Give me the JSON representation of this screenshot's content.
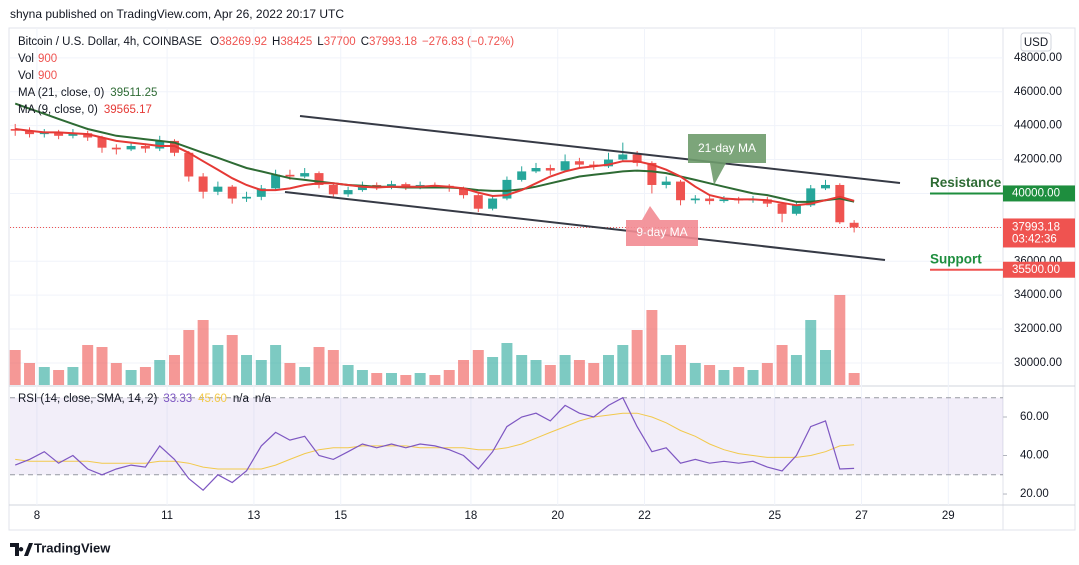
{
  "header": "shyna published on TradingView.com, Apr 26, 2022 20:17 UTC",
  "footer": "TradingView",
  "currency": "USD",
  "chart_data": {
    "type": "candlestick",
    "title": "Bitcoin / U.S. Dollar, 4h, COINBASE",
    "ohlc_letters": [
      "O",
      "H",
      "L",
      "C"
    ],
    "change_label": "−276.83 (−0.72%)",
    "volume_legend": [
      "Vol",
      "900",
      "Vol",
      "900"
    ],
    "ma21_name": "MA (21, close, 0)",
    "ma9_name": "MA (9, close, 0)",
    "rsi_name": "RSI (14, close, SMA, 14, 2)",
    "rsi_sma_label": "45.60",
    "rsi_na": [
      "n/a",
      "n/a"
    ],
    "countdown": "03:42:36",
    "annotations": {
      "ma21": "21-day MA",
      "ma9": "9-day MA",
      "resistance": {
        "label": "Resistance",
        "value": 40000,
        "value_label": "40000.00"
      },
      "support": {
        "label": "Support",
        "value": 35500,
        "value_label": "35500.00"
      }
    },
    "x": [
      7.5,
      7.83,
      8.17,
      8.5,
      8.83,
      9.17,
      9.5,
      9.83,
      10.17,
      10.5,
      10.83,
      11.17,
      11.5,
      11.83,
      12.17,
      12.5,
      12.83,
      13.17,
      13.5,
      13.83,
      14.17,
      14.5,
      14.83,
      15.17,
      15.5,
      15.83,
      16.17,
      16.5,
      16.83,
      17.17,
      17.5,
      17.83,
      18.17,
      18.5,
      18.83,
      19.17,
      19.5,
      19.83,
      20.17,
      20.5,
      20.83,
      21.17,
      21.5,
      21.83,
      22.17,
      22.5,
      22.83,
      23.17,
      23.5,
      23.83,
      24.17,
      24.5,
      24.83,
      25.17,
      25.5,
      25.83,
      26.17,
      26.5,
      26.83
    ],
    "open": [
      43800,
      43700,
      43500,
      43600,
      43400,
      43550,
      43300,
      42700,
      42600,
      42800,
      42650,
      43100,
      42400,
      41000,
      40100,
      40400,
      39700,
      39800,
      40300,
      41100,
      41000,
      41200,
      40500,
      39950,
      40200,
      40500,
      40400,
      40550,
      40350,
      40500,
      40450,
      40300,
      39900,
      39100,
      39700,
      40800,
      41300,
      41500,
      41350,
      41900,
      41700,
      41600,
      42000,
      42300,
      41800,
      40500,
      40700,
      39600,
      39700,
      39550,
      39650,
      39600,
      39650,
      39400,
      38800,
      39300,
      40300,
      40500,
      38269.92
    ],
    "high": [
      44100,
      43900,
      43800,
      43750,
      43800,
      43700,
      43400,
      42900,
      43000,
      42950,
      43400,
      43200,
      42500,
      41200,
      40700,
      40500,
      40100,
      40500,
      41400,
      41400,
      41500,
      41300,
      40600,
      40400,
      40700,
      40650,
      40750,
      40650,
      40700,
      40650,
      40550,
      40400,
      40000,
      39900,
      41000,
      41600,
      41800,
      41700,
      42300,
      42100,
      41900,
      42400,
      43000,
      42500,
      41900,
      41000,
      40800,
      39900,
      39850,
      39850,
      39800,
      39850,
      39800,
      39500,
      39500,
      40500,
      40800,
      40600,
      38425
    ],
    "low": [
      43400,
      43300,
      43300,
      43200,
      43250,
      43100,
      42400,
      42300,
      42500,
      42400,
      42500,
      42200,
      40700,
      39700,
      39900,
      39400,
      39500,
      39600,
      40200,
      40800,
      40900,
      40300,
      39700,
      39800,
      40100,
      40200,
      40250,
      40200,
      40250,
      40300,
      40100,
      39700,
      38900,
      39000,
      39600,
      40700,
      41200,
      41100,
      41300,
      41500,
      41400,
      41500,
      41900,
      41600,
      40000,
      40300,
      39300,
      39400,
      39350,
      39450,
      39400,
      39450,
      39200,
      38300,
      38700,
      39200,
      40200,
      38200,
      37700
    ],
    "close": [
      43700,
      43500,
      43600,
      43400,
      43550,
      43300,
      42700,
      42600,
      42800,
      42650,
      43100,
      42400,
      41000,
      40100,
      40400,
      39700,
      39800,
      40300,
      41100,
      41000,
      41200,
      40500,
      39950,
      40200,
      40500,
      40400,
      40550,
      40350,
      40500,
      40450,
      40300,
      39900,
      39100,
      39700,
      40800,
      41300,
      41500,
      41350,
      41900,
      41700,
      41600,
      42000,
      42300,
      41800,
      40500,
      40700,
      39600,
      39700,
      39550,
      39650,
      39600,
      39650,
      39400,
      38800,
      39300,
      40300,
      40500,
      38300,
      37993.18
    ],
    "volume": [
      35,
      22,
      18,
      15,
      18,
      40,
      38,
      22,
      15,
      18,
      25,
      30,
      55,
      65,
      40,
      50,
      30,
      25,
      40,
      22,
      18,
      38,
      35,
      20,
      15,
      12,
      12,
      10,
      12,
      10,
      15,
      25,
      35,
      28,
      42,
      30,
      25,
      20,
      30,
      25,
      22,
      30,
      40,
      55,
      75,
      30,
      40,
      22,
      20,
      15,
      18,
      15,
      22,
      40,
      30,
      65,
      35,
      90,
      12
    ],
    "vlim": [
      0,
      100
    ],
    "ma21": [
      45300,
      45000,
      44700,
      44400,
      44100,
      43800,
      43600,
      43400,
      43300,
      43200,
      43100,
      43000,
      42700,
      42400,
      42100,
      41800,
      41500,
      41300,
      41100,
      40900,
      40800,
      40700,
      40600,
      40500,
      40450,
      40400,
      40400,
      40350,
      40350,
      40350,
      40350,
      40300,
      40200,
      40150,
      40150,
      40250,
      40400,
      40600,
      40800,
      41000,
      41100,
      41200,
      41300,
      41350,
      41300,
      41200,
      41000,
      40800,
      40600,
      40400,
      40200,
      40000,
      39900,
      39700,
      39500,
      39500,
      39600,
      39700,
      39511.25
    ],
    "ma9": [
      43800,
      43700,
      43600,
      43600,
      43550,
      43500,
      43300,
      43100,
      43000,
      42900,
      42800,
      42800,
      42400,
      41900,
      41400,
      40900,
      40500,
      40200,
      40200,
      40300,
      40500,
      40600,
      40600,
      40500,
      40400,
      40350,
      40400,
      40400,
      40400,
      40450,
      40400,
      40300,
      40050,
      39850,
      39900,
      40200,
      40600,
      41000,
      41300,
      41500,
      41600,
      41700,
      41900,
      41900,
      41700,
      41400,
      41000,
      40400,
      39900,
      39700,
      39650,
      39650,
      39600,
      39450,
      39300,
      39400,
      39600,
      39800,
      39565.17
    ],
    "rsi": [
      35,
      38,
      42,
      36,
      40,
      33,
      30,
      33,
      35,
      34,
      45,
      38,
      28,
      22,
      30,
      26,
      32,
      45,
      52,
      48,
      50,
      40,
      38,
      42,
      46,
      44,
      46,
      44,
      46,
      45,
      43,
      40,
      33,
      42,
      55,
      60,
      62,
      58,
      66,
      62,
      60,
      66,
      70,
      55,
      42,
      44,
      36,
      38,
      36,
      37,
      36,
      37,
      34,
      32,
      40,
      55,
      58,
      33,
      33.33
    ],
    "rsi_sma": [
      38,
      37,
      37,
      37,
      37,
      37,
      36,
      36,
      36,
      36,
      37,
      37,
      36,
      34,
      33,
      33,
      33,
      33,
      35,
      38,
      41,
      43,
      44,
      44,
      45,
      45,
      45,
      45,
      44,
      44,
      44,
      44,
      43,
      43,
      44,
      46,
      49,
      52,
      55,
      58,
      60,
      61,
      62,
      62,
      60,
      57,
      53,
      50,
      46,
      43,
      41,
      40,
      39,
      39,
      39,
      40,
      42,
      45,
      45.6
    ],
    "xlim": [
      7.38,
      30.26
    ],
    "xticks": [
      8,
      11,
      13,
      15,
      18,
      20,
      22,
      25,
      27,
      29
    ],
    "ylim": [
      28700,
      49760
    ],
    "yticks": [
      {
        "value": 30000,
        "label": "30000.00"
      },
      {
        "value": 32000,
        "label": "32000.00"
      },
      {
        "value": 34000,
        "label": "34000.00"
      },
      {
        "value": 36000,
        "label": "36000.00"
      },
      {
        "value": 38000,
        "label": "38000.00"
      },
      {
        "value": 40000,
        "label": "40000.00"
      },
      {
        "value": 42000,
        "label": "42000.00"
      },
      {
        "value": 44000,
        "label": "44000.00"
      },
      {
        "value": 46000,
        "label": "46000.00"
      },
      {
        "value": 48000,
        "label": "48000.00"
      }
    ],
    "rsilim": [
      14.3,
      76.1
    ],
    "rsiticks": [
      {
        "value": 20,
        "label": "20.00"
      },
      {
        "value": 40,
        "label": "40.00"
      },
      {
        "value": 60,
        "label": "60.00"
      }
    ],
    "rsi_band": [
      30,
      70
    ],
    "grid": true,
    "colors": {
      "up": "#26a69a",
      "down": "#ef5350",
      "ma21": "#2e6b34",
      "ma9": "#e53935",
      "rsi": "#7e57c2",
      "rsi_sma": "#f2c94c"
    }
  }
}
